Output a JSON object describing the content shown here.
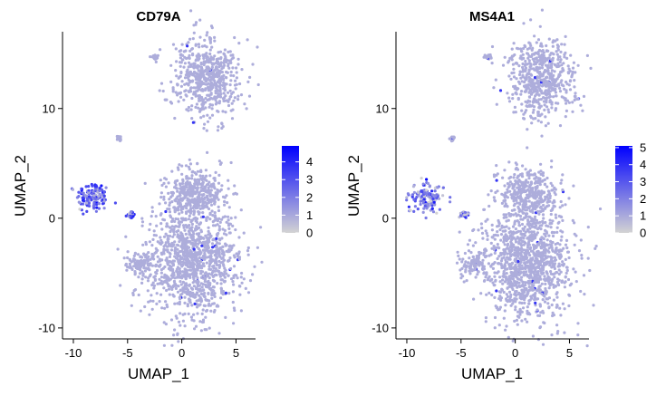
{
  "chart_data": [
    {
      "type": "scatter",
      "title": "CD79A",
      "xlabel": "UMAP_1",
      "ylabel": "UMAP_2",
      "xlim": [
        -11,
        6.8
      ],
      "ylim": [
        -11,
        17
      ],
      "xticks": [
        -10,
        -5,
        0,
        5
      ],
      "yticks": [
        -10,
        0,
        10
      ],
      "xtick_labels": [
        "-10",
        "-5",
        "0",
        "5"
      ],
      "ytick_labels": [
        "-10",
        "0",
        "10"
      ],
      "grid": false,
      "color_low": "#d3d3d3",
      "color_high": "#0000ff",
      "legend_position": "right",
      "legend": {
        "type": "colorbar",
        "min": 0,
        "max": 4.9,
        "ticks": [
          0,
          1,
          2,
          3,
          4
        ],
        "labels": [
          "0",
          "1",
          "2",
          "3",
          "4"
        ]
      },
      "clusters": [
        {
          "center": [
            -8.2,
            1.9
          ],
          "spread": [
            1.5,
            1.4
          ],
          "expression": 2.7
        },
        {
          "center": [
            -4.7,
            0.3
          ],
          "spread": [
            0.35,
            0.25
          ],
          "expression": 2.0
        },
        {
          "center": [
            2.3,
            12.8
          ],
          "spread": [
            3.0,
            3.5
          ],
          "expression": 0.1
        },
        {
          "center": [
            -2.5,
            14.7
          ],
          "spread": [
            0.3,
            0.2
          ],
          "expression": 0.1
        },
        {
          "center": [
            -5.8,
            7.3
          ],
          "spread": [
            0.2,
            0.2
          ],
          "expression": 0.1
        },
        {
          "center": [
            1.2,
            2.3
          ],
          "spread": [
            2.7,
            2.3
          ],
          "expression": 0.1
        },
        {
          "center": [
            1.0,
            -4.0
          ],
          "spread": [
            4.3,
            5.0
          ],
          "expression": 0.1
        },
        {
          "center": [
            -3.8,
            -4.2
          ],
          "spread": [
            1.2,
            1.0
          ],
          "expression": 0.1
        }
      ]
    },
    {
      "type": "scatter",
      "title": "MS4A1",
      "xlabel": "UMAP_1",
      "ylabel": "UMAP_2",
      "xlim": [
        -11,
        6.8
      ],
      "ylim": [
        -11,
        17
      ],
      "xticks": [
        -10,
        -5,
        0,
        5
      ],
      "yticks": [
        -10,
        0,
        10
      ],
      "xtick_labels": [
        "-10",
        "-5",
        "0",
        "5"
      ],
      "ytick_labels": [
        "-10",
        "0",
        "10"
      ],
      "grid": false,
      "color_low": "#d3d3d3",
      "color_high": "#0000ff",
      "legend_position": "right",
      "legend": {
        "type": "colorbar",
        "min": 0,
        "max": 5.1,
        "ticks": [
          0,
          1,
          2,
          3,
          4,
          5
        ],
        "labels": [
          "0",
          "1",
          "2",
          "3",
          "4",
          "5"
        ]
      },
      "clusters": [
        {
          "center": [
            -8.2,
            1.9
          ],
          "spread": [
            1.5,
            1.4
          ],
          "expression": 1.9
        },
        {
          "center": [
            -4.7,
            0.3
          ],
          "spread": [
            0.35,
            0.25
          ],
          "expression": 1.5
        },
        {
          "center": [
            2.3,
            12.8
          ],
          "spread": [
            3.0,
            3.5
          ],
          "expression": 0.1
        },
        {
          "center": [
            -2.5,
            14.7
          ],
          "spread": [
            0.3,
            0.2
          ],
          "expression": 0.1
        },
        {
          "center": [
            -5.8,
            7.3
          ],
          "spread": [
            0.2,
            0.2
          ],
          "expression": 0.1
        },
        {
          "center": [
            1.2,
            2.3
          ],
          "spread": [
            2.7,
            2.3
          ],
          "expression": 0.1
        },
        {
          "center": [
            1.0,
            -4.0
          ],
          "spread": [
            4.3,
            5.0
          ],
          "expression": 0.1
        },
        {
          "center": [
            -3.8,
            -4.2
          ],
          "spread": [
            1.2,
            1.0
          ],
          "expression": 0.1
        }
      ]
    }
  ]
}
